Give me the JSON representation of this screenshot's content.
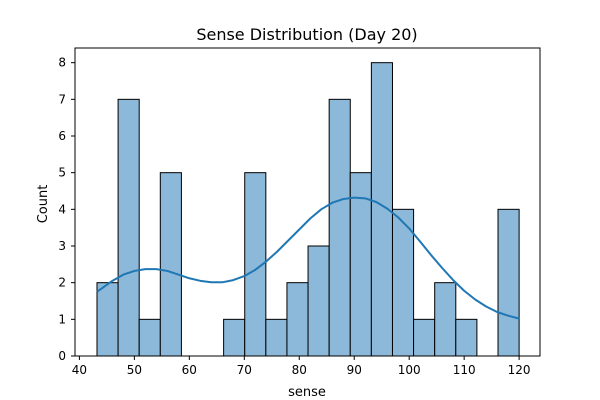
{
  "chart_data": {
    "type": "bar",
    "title": "Sense Distribution (Day 20)",
    "xlabel": "sense",
    "ylabel": "Count",
    "xlim": [
      39.2,
      123.8
    ],
    "ylim": [
      0,
      8.4
    ],
    "x_ticks": [
      40,
      50,
      60,
      70,
      80,
      90,
      100,
      110,
      120
    ],
    "y_ticks": [
      0,
      1,
      2,
      3,
      4,
      5,
      6,
      7,
      8
    ],
    "bins": [
      {
        "start": 43.2,
        "end": 47.04,
        "count": 2
      },
      {
        "start": 47.04,
        "end": 50.88,
        "count": 7
      },
      {
        "start": 50.88,
        "end": 54.72,
        "count": 1
      },
      {
        "start": 54.72,
        "end": 58.56,
        "count": 5
      },
      {
        "start": 58.56,
        "end": 62.4,
        "count": 0
      },
      {
        "start": 62.4,
        "end": 66.24,
        "count": 0
      },
      {
        "start": 66.24,
        "end": 70.08,
        "count": 1
      },
      {
        "start": 70.08,
        "end": 73.92,
        "count": 5
      },
      {
        "start": 73.92,
        "end": 77.76,
        "count": 1
      },
      {
        "start": 77.76,
        "end": 81.6,
        "count": 2
      },
      {
        "start": 81.6,
        "end": 85.44,
        "count": 3
      },
      {
        "start": 85.44,
        "end": 89.28,
        "count": 7
      },
      {
        "start": 89.28,
        "end": 93.12,
        "count": 5
      },
      {
        "start": 93.12,
        "end": 96.96,
        "count": 8
      },
      {
        "start": 96.96,
        "end": 100.8,
        "count": 4
      },
      {
        "start": 100.8,
        "end": 104.64,
        "count": 1
      },
      {
        "start": 104.64,
        "end": 108.48,
        "count": 2
      },
      {
        "start": 108.48,
        "end": 112.32,
        "count": 1
      },
      {
        "start": 112.32,
        "end": 116.16,
        "count": 0
      },
      {
        "start": 116.16,
        "end": 120.0,
        "count": 4
      }
    ],
    "kde": {
      "x": [
        43.2,
        46,
        48,
        50,
        52,
        54,
        56,
        58,
        60,
        62,
        64,
        66,
        68,
        70,
        72,
        74,
        76,
        78,
        80,
        82,
        84,
        86,
        88,
        90,
        92,
        94,
        96,
        98,
        100,
        102,
        104,
        106,
        108,
        110,
        112,
        114,
        116,
        118,
        120
      ],
      "y": [
        1.75,
        2.05,
        2.22,
        2.32,
        2.37,
        2.37,
        2.32,
        2.22,
        2.12,
        2.05,
        2.01,
        2.01,
        2.07,
        2.18,
        2.35,
        2.58,
        2.85,
        3.15,
        3.45,
        3.75,
        4.0,
        4.18,
        4.28,
        4.32,
        4.3,
        4.2,
        4.02,
        3.78,
        3.48,
        3.12,
        2.75,
        2.4,
        2.07,
        1.78,
        1.54,
        1.35,
        1.2,
        1.1,
        1.02
      ]
    },
    "grid": false,
    "colors": {
      "bar_fill": "#8cb8d9",
      "bar_edge": "#000000",
      "kde_line": "#1f77b4"
    }
  }
}
